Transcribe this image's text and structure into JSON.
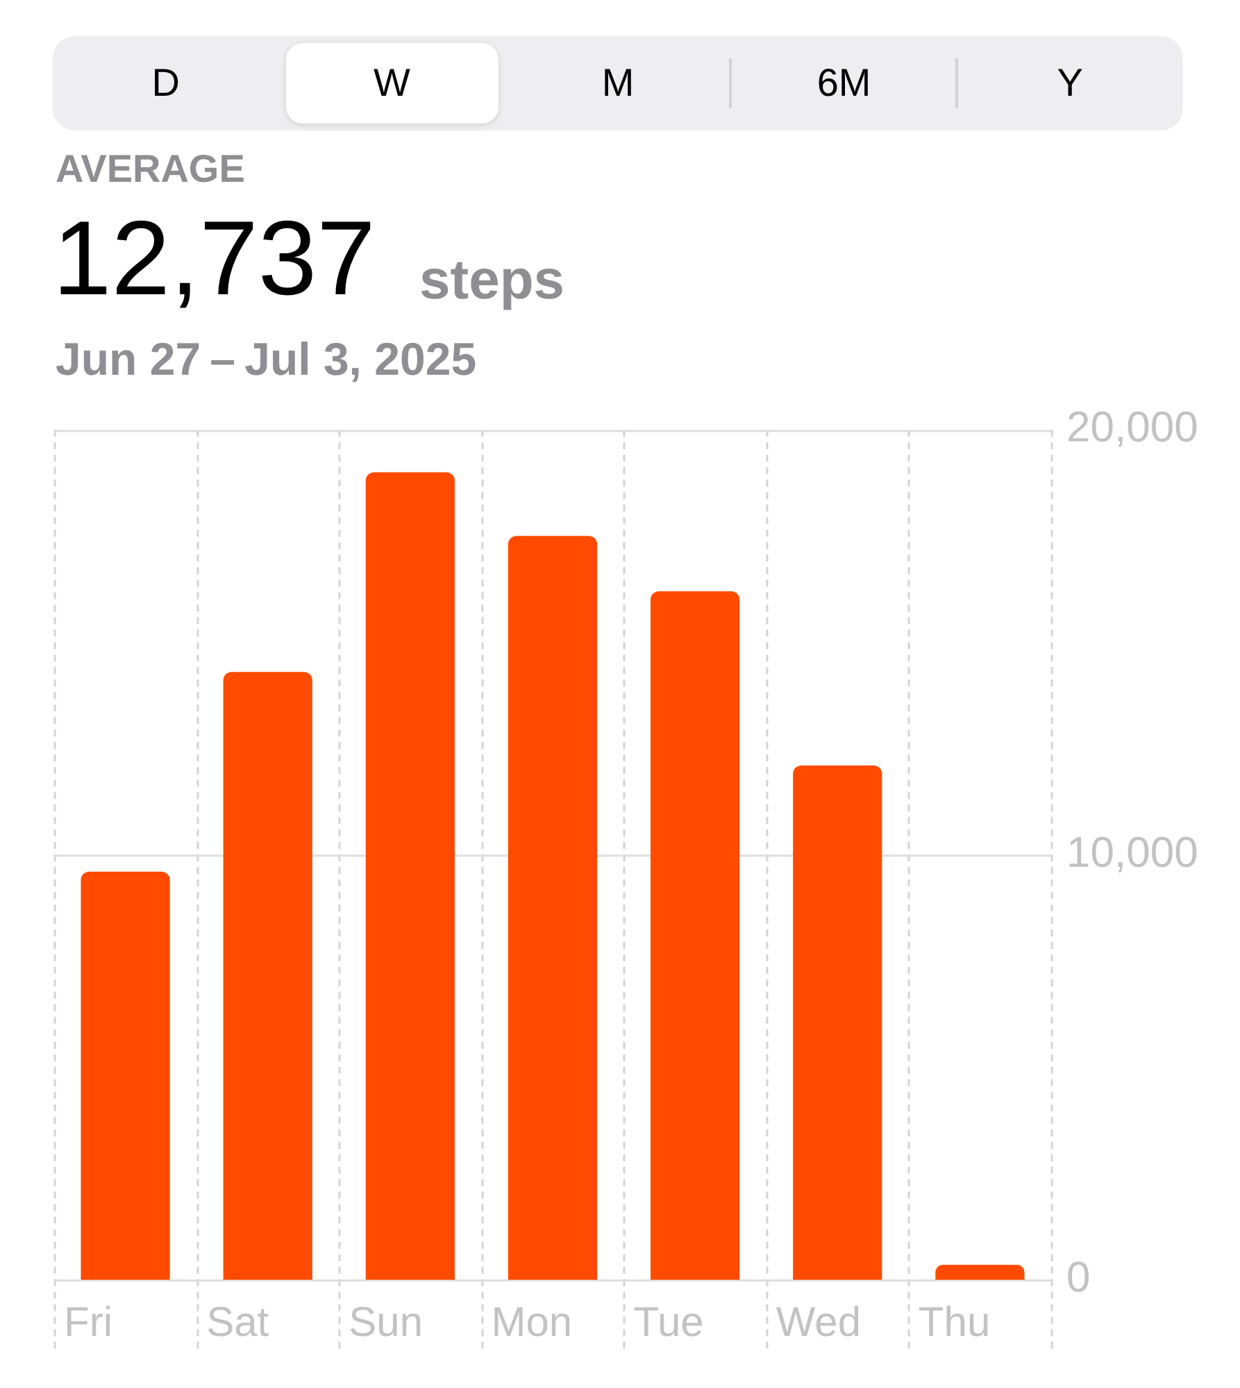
{
  "chart_data": {
    "type": "bar",
    "title": "AVERAGE",
    "subtitle": "Jun 27 – Jul 3, 2025",
    "annotations": [
      "D",
      "W",
      "M",
      "6M",
      "Y",
      "12,737",
      "steps"
    ],
    "categories": [
      "Fri",
      "Sat",
      "Sun",
      "Mon",
      "Tue",
      "Wed",
      "Thu"
    ],
    "values": [
      9600,
      14300,
      19000,
      17500,
      16200,
      12100,
      350
    ],
    "color": "#ff4a00",
    "ylim": [
      0,
      20000
    ],
    "yticks": [
      0,
      {
        "value": 10000,
        "label": "10,000"
      },
      {
        "value": 20000,
        "label": "20,000"
      }
    ],
    "grid": true
  }
}
